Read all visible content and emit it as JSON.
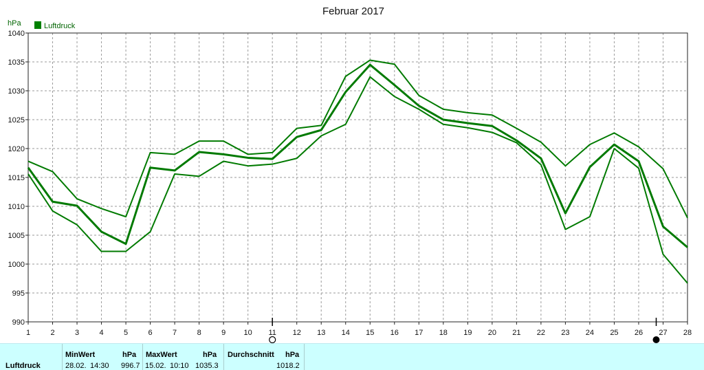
{
  "chart_data": {
    "type": "line",
    "title": "Februar 2017",
    "ylabel": "hPa",
    "legend": [
      "Luftdruck"
    ],
    "legend_position": "top-left",
    "grid": true,
    "x": [
      1,
      2,
      3,
      4,
      5,
      6,
      7,
      8,
      9,
      10,
      11,
      12,
      13,
      14,
      15,
      16,
      17,
      18,
      19,
      20,
      21,
      22,
      23,
      24,
      25,
      26,
      27,
      28
    ],
    "xlim": [
      1,
      28
    ],
    "ylim": [
      990,
      1040
    ],
    "yticks": [
      990,
      995,
      1000,
      1005,
      1010,
      1015,
      1020,
      1025,
      1030,
      1035,
      1040
    ],
    "series": [
      {
        "role": "max",
        "values": [
          1017.8,
          1016.0,
          1011.3,
          1009.6,
          1008.2,
          1019.3,
          1019.0,
          1021.3,
          1021.3,
          1019.0,
          1019.3,
          1023.5,
          1024.0,
          1032.5,
          1035.3,
          1034.6,
          1029.2,
          1026.8,
          1026.2,
          1025.8,
          1023.5,
          1021.1,
          1017.0,
          1020.7,
          1022.7,
          1020.3,
          1016.5,
          1008.0
        ]
      },
      {
        "role": "mean",
        "values": [
          1016.7,
          1010.8,
          1010.1,
          1005.6,
          1003.5,
          1016.7,
          1016.2,
          1019.4,
          1019.0,
          1018.4,
          1018.2,
          1022.0,
          1023.2,
          1029.8,
          1034.5,
          1031.0,
          1027.4,
          1025.0,
          1024.4,
          1023.9,
          1021.4,
          1018.3,
          1008.8,
          1016.8,
          1020.7,
          1017.8,
          1006.5,
          1002.9
        ]
      },
      {
        "role": "min",
        "values": [
          1015.6,
          1009.2,
          1006.8,
          1002.2,
          1002.2,
          1005.6,
          1015.6,
          1015.2,
          1017.8,
          1017.0,
          1017.3,
          1018.3,
          1022.2,
          1024.2,
          1032.4,
          1029.0,
          1026.8,
          1024.2,
          1023.6,
          1022.8,
          1021.0,
          1017.2,
          1006.0,
          1008.2,
          1020.0,
          1016.6,
          1001.7,
          996.7
        ]
      }
    ],
    "markers": {
      "open_circle_day": 11,
      "filled_circle_day": 27
    },
    "colors": {
      "line": "#007a00",
      "grid": "#9a9a9a",
      "legend_box": "#008000"
    }
  },
  "stats": {
    "row_label": "Luftdruck",
    "min_header": "MinWert",
    "min_unit": "hPa",
    "min_date": "28.02.",
    "min_time": "14:30",
    "min_value": "996.7",
    "max_header": "MaxWert",
    "max_unit": "hPa",
    "max_date": "15.02.",
    "max_time": "10:10",
    "max_value": "1035.3",
    "avg_header": "Durchschnitt",
    "avg_unit": "hPa",
    "avg_value": "1018.2",
    "background": "#ccffff"
  }
}
